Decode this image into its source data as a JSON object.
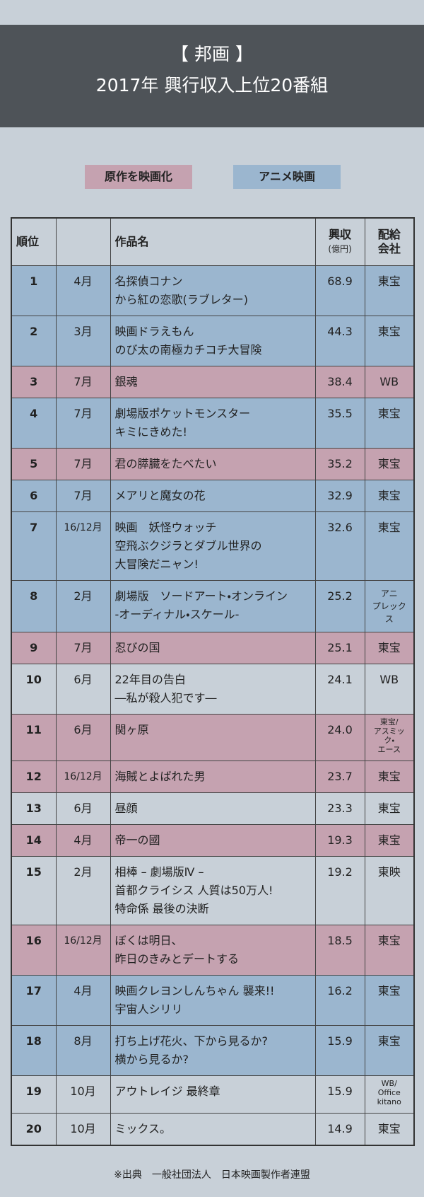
{
  "header": {
    "title": "【 邦画 】",
    "subtitle": "2017年 興行収入上位20番組"
  },
  "legend": [
    {
      "label": "原作を映画化",
      "color": "#c5a2b0"
    },
    {
      "label": "アニメ映画",
      "color": "#9bb6cf"
    }
  ],
  "table": {
    "columns": {
      "rank": "順位",
      "title": "作品名",
      "revenue": "興収",
      "revenue_unit": "(億円)",
      "distributor": [
        "配給",
        "会社"
      ]
    },
    "rows": [
      {
        "rank": 1,
        "month": "4月",
        "title": [
          "名探偵コナン",
          "から紅の恋歌(ラブレター)"
        ],
        "revenue": "68.9",
        "distributor": [
          "東宝"
        ],
        "color": "#9bb6cf"
      },
      {
        "rank": 2,
        "month": "3月",
        "title": [
          "映画ドラえもん",
          "のび太の南極カチコチ大冒険"
        ],
        "revenue": "44.3",
        "distributor": [
          "東宝"
        ],
        "color": "#9bb6cf"
      },
      {
        "rank": 3,
        "month": "7月",
        "title": [
          "銀魂"
        ],
        "revenue": "38.4",
        "distributor": [
          "WB"
        ],
        "color": "#c5a2b0"
      },
      {
        "rank": 4,
        "month": "7月",
        "title": [
          "劇場版ポケットモンスター",
          "キミにきめた!"
        ],
        "revenue": "35.5",
        "distributor": [
          "東宝"
        ],
        "color": "#9bb6cf"
      },
      {
        "rank": 5,
        "month": "7月",
        "title": [
          "君の膵臓をたべたい"
        ],
        "revenue": "35.2",
        "distributor": [
          "東宝"
        ],
        "color": "#c5a2b0"
      },
      {
        "rank": 6,
        "month": "7月",
        "title": [
          "メアリと魔女の花"
        ],
        "revenue": "32.9",
        "distributor": [
          "東宝"
        ],
        "color": "#9bb6cf"
      },
      {
        "rank": 7,
        "month": "16/12月",
        "title": [
          "映画　妖怪ウォッチ",
          "空飛ぶクジラとダブル世界の",
          "大冒険だニャン!"
        ],
        "revenue": "32.6",
        "distributor": [
          "東宝"
        ],
        "color": "#9bb6cf"
      },
      {
        "rank": 8,
        "month": "2月",
        "title": [
          "劇場版　ソードアート・オンライン",
          "-オーディナル・スケール-"
        ],
        "revenue": "25.2",
        "distributor": [
          "アニ",
          "プレックス"
        ],
        "color": "#9bb6cf"
      },
      {
        "rank": 9,
        "month": "7月",
        "title": [
          "忍びの国"
        ],
        "revenue": "25.1",
        "distributor": [
          "東宝"
        ],
        "color": "#c5a2b0"
      },
      {
        "rank": 10,
        "month": "6月",
        "title": [
          "22年目の告白",
          "―私が殺人犯です―"
        ],
        "revenue": "24.1",
        "distributor": [
          "WB"
        ],
        "color": "#c8d0d8"
      },
      {
        "rank": 11,
        "month": "6月",
        "title": [
          "関ヶ原"
        ],
        "revenue": "24.0",
        "distributor": [
          "東宝/",
          "アスミック・",
          "エース"
        ],
        "color": "#c5a2b0"
      },
      {
        "rank": 12,
        "month": "16/12月",
        "title": [
          "海賊とよばれた男"
        ],
        "revenue": "23.7",
        "distributor": [
          "東宝"
        ],
        "color": "#c5a2b0"
      },
      {
        "rank": 13,
        "month": "6月",
        "title": [
          "昼顔"
        ],
        "revenue": "23.3",
        "distributor": [
          "東宝"
        ],
        "color": "#c8d0d8"
      },
      {
        "rank": 14,
        "month": "4月",
        "title": [
          "帝一の國"
        ],
        "revenue": "19.3",
        "distributor": [
          "東宝"
        ],
        "color": "#c5a2b0"
      },
      {
        "rank": 15,
        "month": "2月",
        "title": [
          "相棒 – 劇場版Ⅳ –",
          "首都クライシス 人質は50万人!",
          "特命係 最後の決断"
        ],
        "revenue": "19.2",
        "distributor": [
          "東映"
        ],
        "color": "#c8d0d8"
      },
      {
        "rank": 16,
        "month": "16/12月",
        "title": [
          "ぼくは明日、",
          "昨日のきみとデートする"
        ],
        "revenue": "18.5",
        "distributor": [
          "東宝"
        ],
        "color": "#c5a2b0"
      },
      {
        "rank": 17,
        "month": "4月",
        "title": [
          "映画クレヨンしんちゃん 襲来!!",
          "宇宙人シリリ"
        ],
        "revenue": "16.2",
        "distributor": [
          "東宝"
        ],
        "color": "#9bb6cf"
      },
      {
        "rank": 18,
        "month": "8月",
        "title": [
          "打ち上げ花火、下から見るか?",
          "横から見るか?"
        ],
        "revenue": "15.9",
        "distributor": [
          "東宝"
        ],
        "color": "#9bb6cf"
      },
      {
        "rank": 19,
        "month": "10月",
        "title": [
          "アウトレイジ 最終章"
        ],
        "revenue": "15.9",
        "distributor": [
          "WB/",
          "Office",
          "kitano"
        ],
        "color": "#c8d0d8"
      },
      {
        "rank": 20,
        "month": "10月",
        "title": [
          "ミックス。"
        ],
        "revenue": "14.9",
        "distributor": [
          "東宝"
        ],
        "color": "#c8d0d8"
      }
    ]
  },
  "footer": "※出典　一般社団法人　日本映画製作者連盟"
}
